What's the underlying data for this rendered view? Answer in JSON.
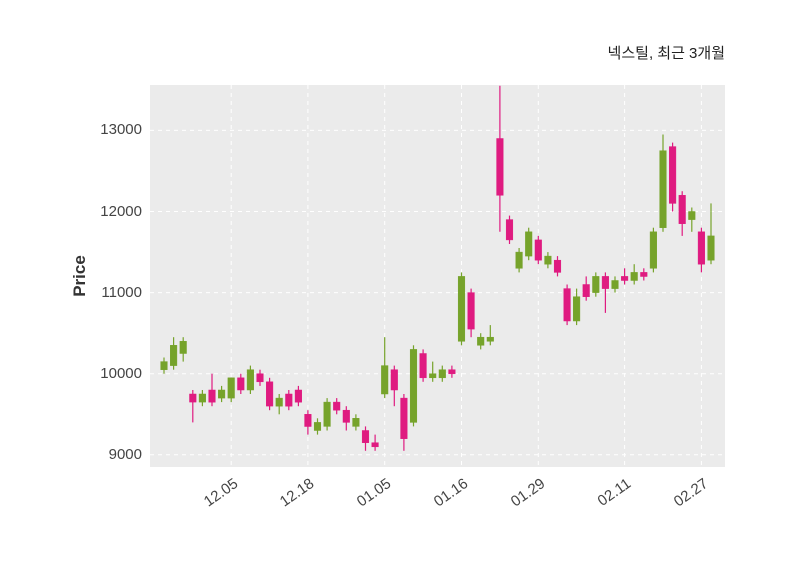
{
  "title": "넥스틸, 최근 3개월",
  "ylabel": "Price",
  "chart_data": {
    "type": "candlestick",
    "title": "넥스틸, 최근 3개월",
    "xlabel": "",
    "ylabel": "Price",
    "background_color": "#ebebeb",
    "grid_color": "#ffffff",
    "up_color": "#76a32b",
    "down_color": "#df1b80",
    "y_ticks": [
      9000,
      10000,
      11000,
      12000,
      13000
    ],
    "y_domain": [
      8850,
      13560
    ],
    "x_ticks": [
      {
        "index": 7,
        "label": "12.05"
      },
      {
        "index": 15,
        "label": "12.18"
      },
      {
        "index": 23,
        "label": "01.05"
      },
      {
        "index": 31,
        "label": "01.16"
      },
      {
        "index": 39,
        "label": "01.29"
      },
      {
        "index": 48,
        "label": "02.11"
      },
      {
        "index": 56,
        "label": "02.27"
      }
    ],
    "candles_format": [
      "open",
      "high",
      "low",
      "close"
    ],
    "candles": [
      [
        10050,
        10200,
        10000,
        10150
      ],
      [
        10100,
        10450,
        10050,
        10350
      ],
      [
        10250,
        10450,
        10150,
        10400
      ],
      [
        9750,
        9800,
        9400,
        9650
      ],
      [
        9650,
        9800,
        9600,
        9750
      ],
      [
        9800,
        10000,
        9600,
        9650
      ],
      [
        9700,
        9850,
        9650,
        9800
      ],
      [
        9700,
        9950,
        9650,
        9950
      ],
      [
        9950,
        10000,
        9750,
        9800
      ],
      [
        9800,
        10100,
        9750,
        10050
      ],
      [
        10000,
        10050,
        9850,
        9900
      ],
      [
        9900,
        9950,
        9550,
        9600
      ],
      [
        9600,
        9750,
        9500,
        9700
      ],
      [
        9750,
        9800,
        9550,
        9600
      ],
      [
        9800,
        9850,
        9600,
        9650
      ],
      [
        9500,
        9550,
        9250,
        9350
      ],
      [
        9300,
        9450,
        9250,
        9400
      ],
      [
        9350,
        9700,
        9300,
        9650
      ],
      [
        9650,
        9700,
        9500,
        9550
      ],
      [
        9550,
        9600,
        9300,
        9400
      ],
      [
        9350,
        9500,
        9300,
        9450
      ],
      [
        9300,
        9350,
        9050,
        9150
      ],
      [
        9150,
        9250,
        9050,
        9100
      ],
      [
        9750,
        10450,
        9700,
        10100
      ],
      [
        10050,
        10100,
        9600,
        9800
      ],
      [
        9700,
        9750,
        9050,
        9200
      ],
      [
        9400,
        10350,
        9350,
        10300
      ],
      [
        10250,
        10300,
        9900,
        9950
      ],
      [
        9950,
        10150,
        9900,
        10000
      ],
      [
        9950,
        10100,
        9900,
        10050
      ],
      [
        10050,
        10100,
        9950,
        10000
      ],
      [
        10400,
        11250,
        10350,
        11200
      ],
      [
        11000,
        11050,
        10450,
        10550
      ],
      [
        10350,
        10500,
        10300,
        10450
      ],
      [
        10400,
        10600,
        10350,
        10450
      ],
      [
        12900,
        13550,
        11750,
        12200
      ],
      [
        11900,
        11950,
        11600,
        11650
      ],
      [
        11300,
        11550,
        11250,
        11500
      ],
      [
        11450,
        11800,
        11400,
        11750
      ],
      [
        11650,
        11700,
        11350,
        11400
      ],
      [
        11350,
        11500,
        11300,
        11450
      ],
      [
        11400,
        11450,
        11200,
        11250
      ],
      [
        11050,
        11100,
        10600,
        10650
      ],
      [
        10650,
        11050,
        10600,
        10950
      ],
      [
        11100,
        11200,
        10900,
        10950
      ],
      [
        11000,
        11250,
        10950,
        11200
      ],
      [
        11200,
        11250,
        10750,
        11050
      ],
      [
        11050,
        11200,
        11000,
        11150
      ],
      [
        11200,
        11300,
        11100,
        11150
      ],
      [
        11150,
        11350,
        11100,
        11250
      ],
      [
        11250,
        11300,
        11150,
        11200
      ],
      [
        11300,
        11800,
        11250,
        11750
      ],
      [
        11800,
        12950,
        11750,
        12750
      ],
      [
        12800,
        12850,
        12000,
        12100
      ],
      [
        12200,
        12250,
        11700,
        11850
      ],
      [
        11900,
        12050,
        11750,
        12000
      ],
      [
        11750,
        11800,
        11250,
        11350
      ],
      [
        11400,
        12100,
        11350,
        11700
      ]
    ]
  }
}
